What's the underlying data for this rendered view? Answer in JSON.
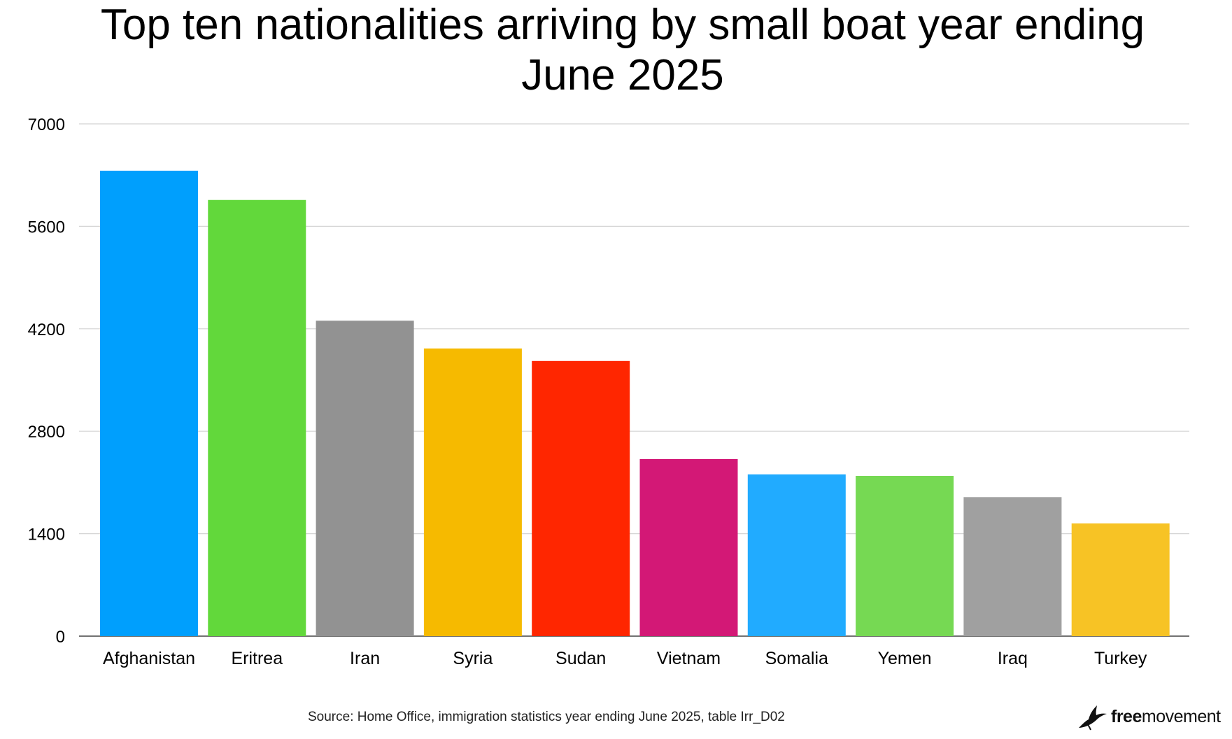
{
  "chart_data": {
    "type": "bar",
    "title": "Top ten nationalities arriving by small boat year ending June 2025",
    "categories": [
      "Afghanistan",
      "Eritrea",
      "Iran",
      "Syria",
      "Sudan",
      "Vietnam",
      "Somalia",
      "Yemen",
      "Iraq",
      "Turkey"
    ],
    "values": [
      6360,
      5960,
      4310,
      3930,
      3760,
      2420,
      2210,
      2190,
      1900,
      1540
    ],
    "colors": [
      "#009ffd",
      "#62d83b",
      "#929292",
      "#f6ba00",
      "#ff2600",
      "#d31876",
      "#21abff",
      "#76d953",
      "#a0a0a0",
      "#f7c325"
    ],
    "xlabel": "",
    "ylabel": "",
    "ylim": [
      0,
      7000
    ],
    "yticks": [
      0,
      1400,
      2800,
      4200,
      5600,
      7000
    ],
    "grid": true,
    "legend": "none"
  },
  "footer": {
    "source": "Source: Home Office, immigration statistics year ending June 2025, table Irr_D02",
    "brand_bold": "free",
    "brand_regular": "movement"
  },
  "icons": {
    "brand_logo": "bird-icon"
  }
}
